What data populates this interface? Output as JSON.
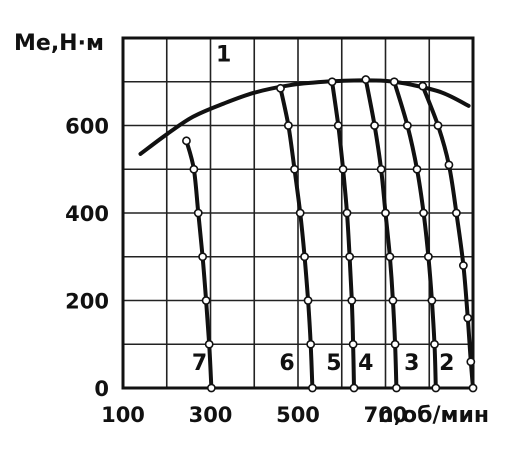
{
  "chart_data": {
    "type": "line",
    "title": "",
    "ylabel": "Me,Н·м",
    "xlabel": "n,об/мин",
    "xlim": [
      100,
      900
    ],
    "ylim": [
      0,
      800
    ],
    "x_ticks": [
      {
        "value": 100,
        "label": "100"
      },
      {
        "value": 300,
        "label": "300"
      },
      {
        "value": 500,
        "label": "500"
      },
      {
        "value": 700,
        "label": "700"
      }
    ],
    "y_ticks": [
      {
        "value": 0,
        "label": "0"
      },
      {
        "value": 200,
        "label": "200"
      },
      {
        "value": 400,
        "label": "400"
      },
      {
        "value": 600,
        "label": "600"
      }
    ],
    "grid": true,
    "series": [
      {
        "name": "1",
        "label_at": [
          330,
          765
        ],
        "markers": false,
        "points": [
          [
            140,
            535
          ],
          [
            200,
            580
          ],
          [
            260,
            620
          ],
          [
            330,
            650
          ],
          [
            400,
            675
          ],
          [
            480,
            692
          ],
          [
            560,
            700
          ],
          [
            640,
            703
          ],
          [
            700,
            702
          ],
          [
            760,
            693
          ],
          [
            830,
            675
          ],
          [
            890,
            645
          ]
        ]
      },
      {
        "name": "2",
        "label_at": [
          840,
          60
        ],
        "markers": true,
        "points": [
          [
            785,
            690
          ],
          [
            820,
            600
          ],
          [
            845,
            510
          ],
          [
            862,
            400
          ],
          [
            878,
            280
          ],
          [
            888,
            160
          ],
          [
            895,
            60
          ],
          [
            900,
            0
          ]
        ]
      },
      {
        "name": "3",
        "label_at": [
          760,
          60
        ],
        "markers": true,
        "points": [
          [
            720,
            700
          ],
          [
            750,
            600
          ],
          [
            772,
            500
          ],
          [
            787,
            400
          ],
          [
            798,
            300
          ],
          [
            806,
            200
          ],
          [
            812,
            100
          ],
          [
            815,
            0
          ]
        ]
      },
      {
        "name": "4",
        "label_at": [
          655,
          60
        ],
        "markers": true,
        "points": [
          [
            655,
            705
          ],
          [
            675,
            600
          ],
          [
            690,
            500
          ],
          [
            700,
            400
          ],
          [
            710,
            300
          ],
          [
            717,
            200
          ],
          [
            722,
            100
          ],
          [
            725,
            0
          ]
        ]
      },
      {
        "name": "5",
        "label_at": [
          582,
          60
        ],
        "markers": true,
        "points": [
          [
            578,
            700
          ],
          [
            592,
            600
          ],
          [
            603,
            500
          ],
          [
            612,
            400
          ],
          [
            618,
            300
          ],
          [
            623,
            200
          ],
          [
            626,
            100
          ],
          [
            628,
            0
          ]
        ]
      },
      {
        "name": "6",
        "label_at": [
          475,
          60
        ],
        "markers": true,
        "points": [
          [
            460,
            685
          ],
          [
            478,
            600
          ],
          [
            492,
            500
          ],
          [
            505,
            400
          ],
          [
            515,
            300
          ],
          [
            523,
            200
          ],
          [
            529,
            100
          ],
          [
            533,
            0
          ]
        ]
      },
      {
        "name": "7",
        "label_at": [
          275,
          60
        ],
        "markers": true,
        "points": [
          [
            245,
            565
          ],
          [
            262,
            500
          ],
          [
            272,
            400
          ],
          [
            282,
            300
          ],
          [
            290,
            200
          ],
          [
            297,
            100
          ],
          [
            302,
            0
          ]
        ]
      }
    ]
  }
}
